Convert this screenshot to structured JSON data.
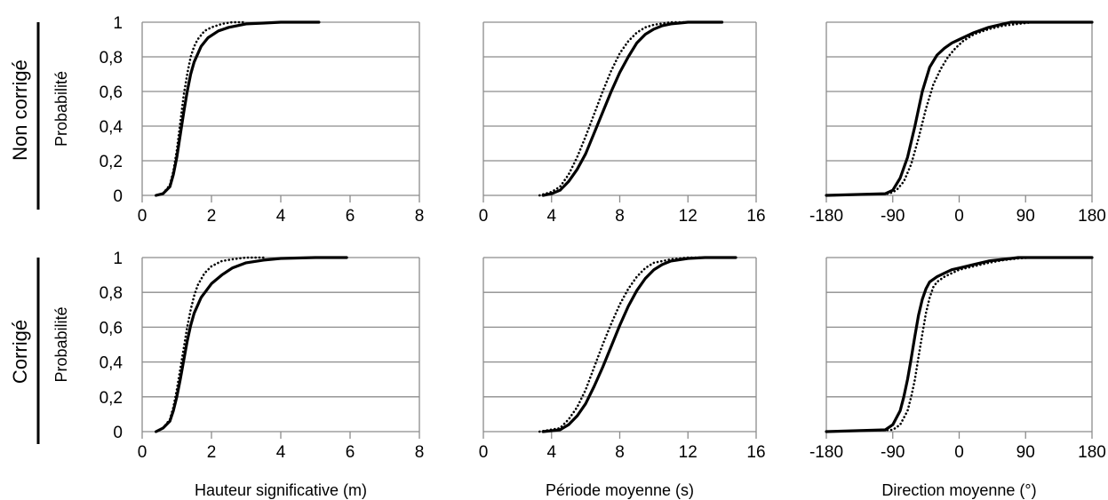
{
  "figure": {
    "row_labels": [
      "Non corrigé",
      "Corrigé"
    ],
    "ylabel": "Probabilité",
    "yticks": [
      "0",
      "0,2",
      "0,4",
      "0,6",
      "0,8",
      "1"
    ]
  },
  "chart_data": [
    {
      "type": "line",
      "row": "Non corrigé",
      "column": 0,
      "xlabel": "",
      "ylabel": "Probabilité",
      "xlim": [
        0,
        8
      ],
      "ylim": [
        0,
        1
      ],
      "xticks": [
        "0",
        "2",
        "4",
        "6",
        "8"
      ],
      "grid": "horizontal",
      "series": [
        {
          "style": "solid",
          "color": "#000000",
          "x": [
            0.4,
            0.6,
            0.8,
            0.9,
            1.0,
            1.1,
            1.2,
            1.3,
            1.4,
            1.5,
            1.7,
            1.9,
            2.2,
            2.5,
            3.0,
            3.5,
            4.0,
            5.1
          ],
          "y": [
            0,
            0.01,
            0.05,
            0.12,
            0.22,
            0.35,
            0.48,
            0.6,
            0.7,
            0.77,
            0.86,
            0.91,
            0.95,
            0.97,
            0.99,
            0.995,
            1,
            1
          ]
        },
        {
          "style": "dotted",
          "color": "#000000",
          "x": [
            0.4,
            0.6,
            0.8,
            0.9,
            1.0,
            1.1,
            1.2,
            1.3,
            1.4,
            1.5,
            1.6,
            1.8,
            2.0,
            2.3,
            2.6,
            3.0
          ],
          "y": [
            0,
            0.01,
            0.06,
            0.14,
            0.26,
            0.42,
            0.58,
            0.7,
            0.8,
            0.86,
            0.9,
            0.95,
            0.97,
            0.99,
            1,
            1
          ]
        }
      ]
    },
    {
      "type": "line",
      "row": "Non corrigé",
      "column": 1,
      "xlabel": "",
      "ylabel": "",
      "xlim": [
        0,
        16
      ],
      "ylim": [
        0,
        1
      ],
      "xticks": [
        "0",
        "4",
        "8",
        "12",
        "16"
      ],
      "grid": "horizontal",
      "series": [
        {
          "style": "solid",
          "color": "#000000",
          "x": [
            3.5,
            4.0,
            4.5,
            5.0,
            5.5,
            6.0,
            6.5,
            7.0,
            7.5,
            8.0,
            8.5,
            9.0,
            9.5,
            10.0,
            10.5,
            11.0,
            12.0,
            14.0
          ],
          "y": [
            0,
            0.01,
            0.03,
            0.08,
            0.15,
            0.24,
            0.36,
            0.48,
            0.6,
            0.71,
            0.8,
            0.88,
            0.93,
            0.96,
            0.98,
            0.99,
            1,
            1
          ]
        },
        {
          "style": "dotted",
          "color": "#000000",
          "x": [
            3.3,
            4.0,
            4.5,
            5.0,
            5.5,
            6.0,
            6.5,
            7.0,
            7.5,
            8.0,
            8.5,
            9.0,
            9.5,
            10.0,
            11.0,
            12.0
          ],
          "y": [
            0,
            0.02,
            0.05,
            0.12,
            0.22,
            0.34,
            0.47,
            0.6,
            0.72,
            0.82,
            0.89,
            0.94,
            0.97,
            0.985,
            1,
            1
          ]
        }
      ]
    },
    {
      "type": "line",
      "row": "Non corrigé",
      "column": 2,
      "xlabel": "",
      "ylabel": "",
      "xlim": [
        -180,
        180
      ],
      "ylim": [
        0,
        1
      ],
      "xticks": [
        "-180",
        "-90",
        "0",
        "90",
        "180"
      ],
      "grid": "horizontal",
      "series": [
        {
          "style": "solid",
          "color": "#000000",
          "x": [
            -180,
            -100,
            -90,
            -80,
            -70,
            -60,
            -50,
            -40,
            -30,
            -20,
            -10,
            0,
            20,
            40,
            60,
            70,
            90,
            180
          ],
          "y": [
            0,
            0.01,
            0.03,
            0.1,
            0.22,
            0.4,
            0.6,
            0.74,
            0.81,
            0.85,
            0.88,
            0.9,
            0.94,
            0.97,
            0.99,
            1,
            1,
            1
          ]
        },
        {
          "style": "dotted",
          "color": "#000000",
          "x": [
            -180,
            -95,
            -85,
            -75,
            -65,
            -55,
            -45,
            -35,
            -25,
            -15,
            -5,
            5,
            20,
            40,
            60,
            80,
            100,
            180
          ],
          "y": [
            0,
            0.01,
            0.03,
            0.08,
            0.18,
            0.33,
            0.5,
            0.64,
            0.73,
            0.8,
            0.85,
            0.89,
            0.93,
            0.96,
            0.98,
            0.99,
            1,
            1
          ]
        }
      ]
    },
    {
      "type": "line",
      "row": "Corrigé",
      "column": 0,
      "xlabel": "Hauteur significative (m)",
      "ylabel": "Probabilité",
      "xlim": [
        0,
        8
      ],
      "ylim": [
        0,
        1
      ],
      "xticks": [
        "0",
        "2",
        "4",
        "6",
        "8"
      ],
      "grid": "horizontal",
      "series": [
        {
          "style": "solid",
          "color": "#000000",
          "x": [
            0.4,
            0.6,
            0.8,
            0.9,
            1.0,
            1.1,
            1.2,
            1.3,
            1.4,
            1.5,
            1.7,
            2.0,
            2.3,
            2.6,
            3.0,
            3.5,
            4.0,
            5.0,
            5.9
          ],
          "y": [
            0,
            0.02,
            0.06,
            0.12,
            0.2,
            0.3,
            0.41,
            0.52,
            0.61,
            0.68,
            0.77,
            0.85,
            0.9,
            0.94,
            0.97,
            0.985,
            0.995,
            1,
            1
          ]
        },
        {
          "style": "dotted",
          "color": "#000000",
          "x": [
            0.4,
            0.6,
            0.8,
            0.9,
            1.0,
            1.1,
            1.2,
            1.3,
            1.4,
            1.5,
            1.6,
            1.8,
            2.0,
            2.3,
            2.6,
            3.0,
            3.5
          ],
          "y": [
            0,
            0.02,
            0.07,
            0.14,
            0.24,
            0.36,
            0.48,
            0.6,
            0.7,
            0.78,
            0.84,
            0.91,
            0.95,
            0.98,
            0.99,
            1,
            1
          ]
        }
      ]
    },
    {
      "type": "line",
      "row": "Corrigé",
      "column": 1,
      "xlabel": "Période moyenne (s)",
      "ylabel": "",
      "xlim": [
        0,
        16
      ],
      "ylim": [
        0,
        1
      ],
      "xticks": [
        "0",
        "4",
        "8",
        "12",
        "16"
      ],
      "grid": "horizontal",
      "series": [
        {
          "style": "solid",
          "color": "#000000",
          "x": [
            3.5,
            4.5,
            5.0,
            5.5,
            6.0,
            6.5,
            7.0,
            7.5,
            8.0,
            8.5,
            9.0,
            9.5,
            10.0,
            10.5,
            11.0,
            12.0,
            13.0,
            14.8
          ],
          "y": [
            0,
            0.01,
            0.04,
            0.09,
            0.16,
            0.26,
            0.37,
            0.49,
            0.61,
            0.72,
            0.81,
            0.88,
            0.93,
            0.96,
            0.98,
            0.995,
            1,
            1
          ]
        },
        {
          "style": "dotted",
          "color": "#000000",
          "x": [
            3.3,
            4.5,
            5.0,
            5.5,
            6.0,
            6.5,
            7.0,
            7.5,
            8.0,
            8.5,
            9.0,
            9.5,
            10.0,
            11.0,
            12.0,
            13.0
          ],
          "y": [
            0,
            0.02,
            0.07,
            0.14,
            0.24,
            0.37,
            0.5,
            0.62,
            0.73,
            0.82,
            0.89,
            0.94,
            0.97,
            0.99,
            1,
            1
          ]
        }
      ]
    },
    {
      "type": "line",
      "row": "Corrigé",
      "column": 2,
      "xlabel": "Direction moyenne (°)",
      "ylabel": "",
      "xlim": [
        -180,
        180
      ],
      "ylim": [
        0,
        1
      ],
      "xticks": [
        "-180",
        "-90",
        "0",
        "90",
        "180"
      ],
      "grid": "horizontal",
      "series": [
        {
          "style": "solid",
          "color": "#000000",
          "x": [
            -180,
            -100,
            -90,
            -80,
            -75,
            -70,
            -65,
            -60,
            -55,
            -50,
            -45,
            -40,
            -30,
            -20,
            -10,
            0,
            20,
            40,
            60,
            80,
            180
          ],
          "y": [
            0,
            0.01,
            0.04,
            0.12,
            0.2,
            0.3,
            0.42,
            0.55,
            0.67,
            0.76,
            0.82,
            0.86,
            0.89,
            0.91,
            0.93,
            0.94,
            0.96,
            0.98,
            0.99,
            1,
            1
          ]
        },
        {
          "style": "dotted",
          "color": "#000000",
          "x": [
            -180,
            -90,
            -80,
            -70,
            -65,
            -60,
            -55,
            -50,
            -45,
            -40,
            -35,
            -30,
            -20,
            -10,
            0,
            20,
            40,
            60,
            80,
            100,
            180
          ],
          "y": [
            0,
            0.01,
            0.04,
            0.12,
            0.2,
            0.3,
            0.43,
            0.56,
            0.68,
            0.77,
            0.83,
            0.86,
            0.89,
            0.91,
            0.93,
            0.95,
            0.97,
            0.985,
            0.995,
            1,
            1
          ]
        }
      ]
    }
  ]
}
